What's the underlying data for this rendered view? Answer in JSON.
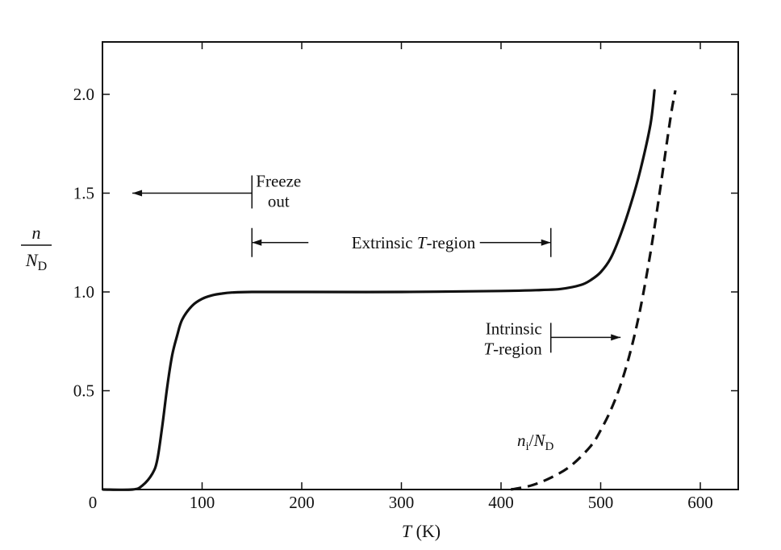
{
  "chart_data": {
    "type": "line",
    "xlabel_var": "T",
    "xlabel_unit": "(K)",
    "ylabel_num": "n",
    "ylabel_den_var": "N",
    "ylabel_den_sub": "D",
    "xlim": [
      0,
      650
    ],
    "ylim": [
      0,
      2.25
    ],
    "x_ticks": [
      0,
      100,
      200,
      300,
      400,
      500,
      600
    ],
    "x_tick_labels": [
      "0",
      "100",
      "200",
      "300",
      "400",
      "500",
      "600"
    ],
    "y_ticks": [
      0.5,
      1.0,
      1.5,
      2.0
    ],
    "y_tick_labels": [
      "0.5",
      "1.0",
      "1.5",
      "2.0"
    ],
    "grid": false,
    "series": [
      {
        "style": "solid",
        "x": [
          0,
          30,
          40,
          50,
          55,
          60,
          65,
          70,
          75,
          80,
          90,
          100,
          110,
          120,
          130,
          150,
          200,
          300,
          400,
          440,
          460,
          480,
          490,
          500,
          510,
          520,
          530,
          540,
          550,
          554
        ],
        "y": [
          0,
          0,
          0.02,
          0.08,
          0.15,
          0.32,
          0.52,
          0.68,
          0.78,
          0.86,
          0.93,
          0.965,
          0.983,
          0.992,
          0.997,
          1.0,
          1.0,
          1.0,
          1.005,
          1.01,
          1.015,
          1.035,
          1.06,
          1.1,
          1.17,
          1.29,
          1.44,
          1.62,
          1.85,
          2.02
        ]
      },
      {
        "style": "dashed",
        "label_var": "n",
        "label_var_sub": "i",
        "label_slash": "/",
        "label_den_var": "N",
        "label_den_sub": "D",
        "x": [
          410,
          430,
          450,
          470,
          490,
          500,
          510,
          520,
          530,
          540,
          550,
          560,
          570,
          575
        ],
        "y": [
          0,
          0.02,
          0.06,
          0.12,
          0.22,
          0.3,
          0.4,
          0.53,
          0.7,
          0.92,
          1.2,
          1.53,
          1.88,
          2.02
        ]
      }
    ],
    "annotations": [
      {
        "id": "freeze",
        "lines": [
          "Freeze",
          "out"
        ],
        "boundary_x": 150,
        "arrow_to_x": 30,
        "y": 1.5
      },
      {
        "id": "extrinsic",
        "text_pre": "Extrinsic ",
        "text_var": "T",
        "text_post": "-region",
        "x_from": 150,
        "x_to": 450,
        "y": 1.25
      },
      {
        "id": "intrinsic",
        "line1": "Intrinsic",
        "line2_var": "T",
        "line2_post": "-region",
        "boundary_x": 450,
        "arrow_to_x": 520,
        "y": 0.77
      }
    ]
  }
}
